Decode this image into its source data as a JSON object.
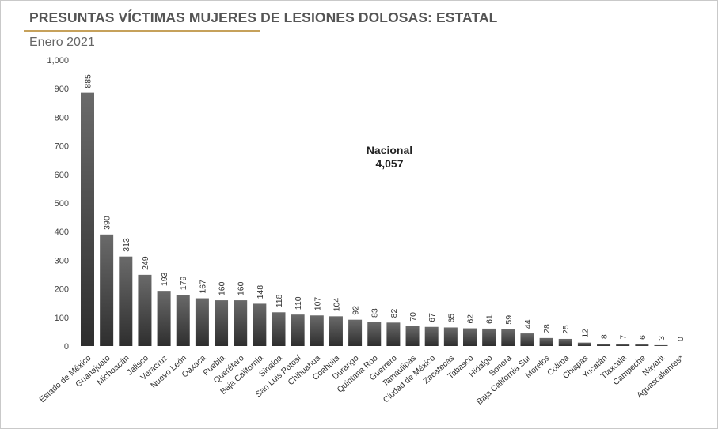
{
  "header": {
    "title": "PRESUNTAS VÍCTIMAS MUJERES DE LESIONES DOLOSAS: ESTATAL",
    "subtitle": "Enero 2021"
  },
  "annotation": {
    "label": "Nacional",
    "value": "4,057"
  },
  "colors": {
    "bar_top": "#6a6a6a",
    "bar_bottom": "#2e2e2e",
    "accent_rule": "#c6a15b",
    "text": "#4a4a4a"
  },
  "chart_data": {
    "type": "bar",
    "title": "PRESUNTAS VÍCTIMAS MUJERES DE LESIONES DOLOSAS: ESTATAL",
    "subtitle": "Enero 2021",
    "xlabel": "",
    "ylabel": "",
    "ylim": [
      0,
      1000
    ],
    "yticks": [
      "0",
      "100",
      "200",
      "300",
      "400",
      "500",
      "600",
      "700",
      "800",
      "900",
      "1,000"
    ],
    "grid": false,
    "categories": [
      "Estado de México",
      "Guanajuato",
      "Michoacán",
      "Jalisco",
      "Veracruz",
      "Nuevo León",
      "Oaxaca",
      "Puebla",
      "Querétaro",
      "Baja California",
      "Sinaloa",
      "San Luis Potosí",
      "Chihuahua",
      "Coahuila",
      "Durango",
      "Quintana Roo",
      "Guerrero",
      "Tamaulipas",
      "Ciudad de México",
      "Zacatecas",
      "Tabasco",
      "Hidalgo",
      "Sonora",
      "Baja California Sur",
      "Morelos",
      "Colima",
      "Chiapas",
      "Yucatán",
      "Tlaxcala",
      "Campeche",
      "Nayarit",
      "Aguascalientes*"
    ],
    "values": [
      885,
      390,
      313,
      249,
      193,
      179,
      167,
      160,
      160,
      148,
      118,
      110,
      107,
      104,
      92,
      83,
      82,
      70,
      67,
      65,
      62,
      61,
      59,
      44,
      28,
      25,
      12,
      8,
      7,
      6,
      3,
      0
    ]
  }
}
